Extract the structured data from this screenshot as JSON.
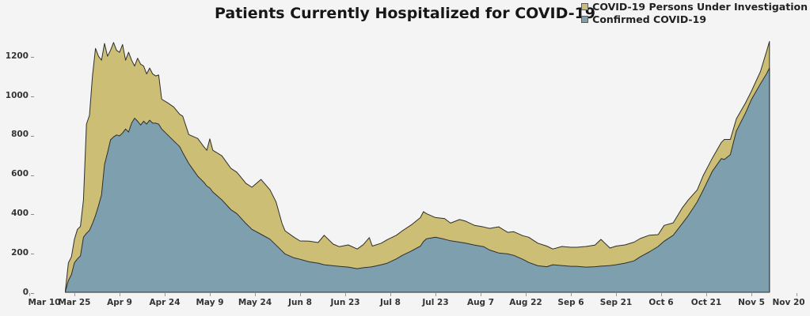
{
  "chart_data": {
    "type": "area",
    "stacked": true,
    "title": "Patients Currently Hospitalized for COVID-19",
    "background": "#f4f4f4",
    "grid": false,
    "outline_color": "#2e2e2e",
    "legend_position": "top-right",
    "x_axis": {
      "tick_labels": [
        "Mar 10",
        "Mar 25",
        "Apr 9",
        "Apr 24",
        "May 9",
        "May 24",
        "Jun 8",
        "Jun 23",
        "Jul 8",
        "Jul 23",
        "Aug 7",
        "Aug 22",
        "Sep 6",
        "Sep 21",
        "Oct 6",
        "Oct 21",
        "Nov 5",
        "Nov 20"
      ],
      "tick_interval_days": 15,
      "range_days": [
        0,
        255
      ]
    },
    "y_axis": {
      "ticks": [
        0,
        200,
        400,
        600,
        800,
        1000,
        1200
      ],
      "range": [
        0,
        1300
      ]
    },
    "series": [
      {
        "name": "Confirmed COVID-19",
        "color": "#7e9fad",
        "stack_order": 0
      },
      {
        "name": "COVID-19 Persons Under Investigation",
        "color": "#cdbe76",
        "stack_order": 1
      }
    ],
    "point_format": "[days_since_Mar_10, confirmed, persons_under_investigation]; stacked_total = confirmed + persons_under_investigation",
    "points": [
      [
        12,
        5,
        5
      ],
      [
        13,
        60,
        90
      ],
      [
        14,
        90,
        90
      ],
      [
        15,
        150,
        120
      ],
      [
        16,
        170,
        150
      ],
      [
        17,
        185,
        150
      ],
      [
        18,
        280,
        190
      ],
      [
        19,
        300,
        555
      ],
      [
        20,
        315,
        585
      ],
      [
        21,
        350,
        750
      ],
      [
        22,
        390,
        850
      ],
      [
        23,
        440,
        760
      ],
      [
        24,
        495,
        685
      ],
      [
        25,
        650,
        615
      ],
      [
        26,
        710,
        490
      ],
      [
        27,
        775,
        455
      ],
      [
        28,
        790,
        480
      ],
      [
        29,
        800,
        430
      ],
      [
        30,
        795,
        425
      ],
      [
        31,
        810,
        450
      ],
      [
        32,
        830,
        350
      ],
      [
        33,
        815,
        405
      ],
      [
        34,
        860,
        320
      ],
      [
        35,
        885,
        265
      ],
      [
        36,
        870,
        320
      ],
      [
        37,
        850,
        310
      ],
      [
        38,
        870,
        280
      ],
      [
        39,
        855,
        255
      ],
      [
        40,
        875,
        265
      ],
      [
        41,
        860,
        250
      ],
      [
        42,
        860,
        240
      ],
      [
        43,
        855,
        250
      ],
      [
        44,
        830,
        152
      ],
      [
        46,
        800,
        163
      ],
      [
        48,
        770,
        172
      ],
      [
        50,
        740,
        165
      ],
      [
        51,
        710,
        185
      ],
      [
        53,
        655,
        147
      ],
      [
        56,
        590,
        192
      ],
      [
        58,
        560,
        180
      ],
      [
        59,
        540,
        182
      ],
      [
        60,
        530,
        250
      ],
      [
        61,
        510,
        212
      ],
      [
        64,
        470,
        224
      ],
      [
        67,
        420,
        210
      ],
      [
        69,
        400,
        210
      ],
      [
        72,
        350,
        204
      ],
      [
        74,
        320,
        214
      ],
      [
        77,
        295,
        279
      ],
      [
        80,
        270,
        251
      ],
      [
        82,
        240,
        220
      ],
      [
        84,
        210,
        140
      ],
      [
        85,
        195,
        118
      ],
      [
        88,
        175,
        105
      ],
      [
        90,
        168,
        93
      ],
      [
        93,
        155,
        105
      ],
      [
        96,
        148,
        105
      ],
      [
        98,
        140,
        150
      ],
      [
        101,
        135,
        110
      ],
      [
        103,
        132,
        100
      ],
      [
        106,
        128,
        113
      ],
      [
        109,
        120,
        100
      ],
      [
        111,
        125,
        117
      ],
      [
        113,
        128,
        150
      ],
      [
        114,
        130,
        105
      ],
      [
        117,
        140,
        110
      ],
      [
        119,
        148,
        120
      ],
      [
        122,
        170,
        120
      ],
      [
        124,
        188,
        125
      ],
      [
        127,
        210,
        133
      ],
      [
        130,
        235,
        145
      ],
      [
        131,
        258,
        152
      ],
      [
        132,
        272,
        128
      ],
      [
        135,
        280,
        100
      ],
      [
        138,
        270,
        105
      ],
      [
        140,
        262,
        90
      ],
      [
        143,
        255,
        115
      ],
      [
        145,
        250,
        112
      ],
      [
        148,
        240,
        100
      ],
      [
        151,
        232,
        100
      ],
      [
        153,
        215,
        110
      ],
      [
        156,
        200,
        133
      ],
      [
        159,
        195,
        110
      ],
      [
        161,
        188,
        120
      ],
      [
        164,
        168,
        120
      ],
      [
        166,
        152,
        128
      ],
      [
        169,
        135,
        115
      ],
      [
        172,
        130,
        105
      ],
      [
        174,
        140,
        80
      ],
      [
        177,
        136,
        97
      ],
      [
        180,
        132,
        97
      ],
      [
        182,
        132,
        97
      ],
      [
        185,
        128,
        105
      ],
      [
        188,
        130,
        110
      ],
      [
        190,
        133,
        136
      ],
      [
        193,
        136,
        89
      ],
      [
        195,
        140,
        95
      ],
      [
        198,
        148,
        93
      ],
      [
        201,
        160,
        95
      ],
      [
        203,
        180,
        93
      ],
      [
        206,
        205,
        85
      ],
      [
        209,
        233,
        60
      ],
      [
        211,
        260,
        80
      ],
      [
        214,
        290,
        63
      ],
      [
        217,
        349,
        80
      ],
      [
        219,
        390,
        79
      ],
      [
        222,
        460,
        61
      ],
      [
        224,
        520,
        74
      ],
      [
        227,
        615,
        67
      ],
      [
        230,
        680,
        82
      ],
      [
        231,
        675,
        102
      ],
      [
        233,
        700,
        77
      ],
      [
        235,
        820,
        62
      ],
      [
        238,
        910,
        52
      ],
      [
        240,
        980,
        42
      ],
      [
        243,
        1060,
        62
      ],
      [
        245,
        1110,
        113
      ],
      [
        246,
        1140,
        135
      ]
    ]
  },
  "legend": {
    "items": [
      {
        "label": "COVID-19 Persons Under Investigation",
        "color": "#cdbe76"
      },
      {
        "label": "Confirmed COVID-19",
        "color": "#7e9fad"
      }
    ]
  }
}
